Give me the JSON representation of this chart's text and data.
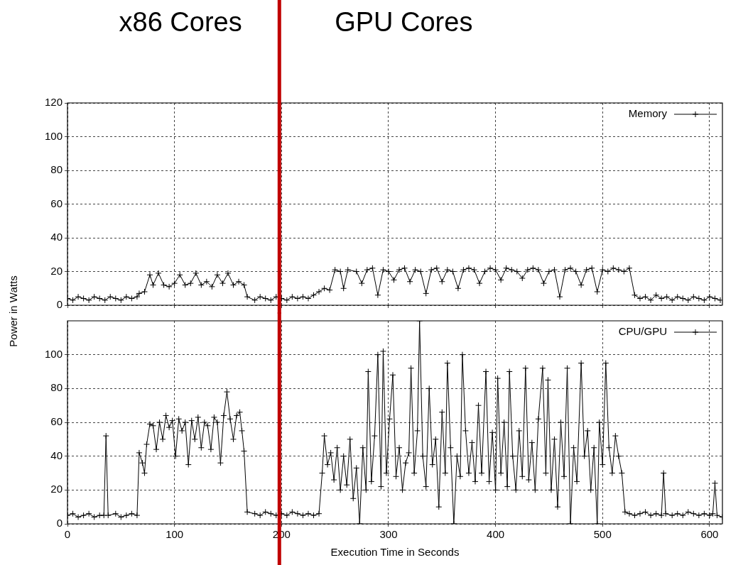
{
  "chart_data": [
    {
      "type": "line",
      "annotations": [
        "x86 Cores",
        "GPU Cores"
      ],
      "legend": "top right",
      "marker": "cross",
      "grid": true,
      "tick_labels": "y",
      "xlim": [
        0,
        612
      ],
      "xticks": [
        0,
        100,
        200,
        300,
        400,
        500,
        600
      ],
      "ylim": [
        0,
        120
      ],
      "yticks": [
        0,
        20,
        40,
        60,
        80,
        100,
        120
      ],
      "ref_lines": [
        {
          "axis": "x",
          "value": 198,
          "label": null,
          "color": "#c00000"
        }
      ],
      "series": [
        {
          "name": "Memory",
          "color": "#000000",
          "x": [
            0,
            5,
            10,
            15,
            20,
            25,
            30,
            35,
            40,
            45,
            50,
            55,
            60,
            65,
            67,
            72,
            77,
            80,
            85,
            90,
            95,
            100,
            105,
            110,
            115,
            120,
            125,
            130,
            135,
            140,
            145,
            150,
            155,
            160,
            165,
            168,
            175,
            180,
            185,
            190,
            195,
            200,
            205,
            210,
            215,
            220,
            225,
            230,
            235,
            240,
            245,
            250,
            255,
            258,
            262,
            270,
            275,
            280,
            285,
            290,
            295,
            300,
            305,
            310,
            315,
            320,
            325,
            330,
            335,
            340,
            345,
            350,
            355,
            360,
            365,
            370,
            375,
            380,
            385,
            390,
            395,
            400,
            405,
            410,
            415,
            420,
            425,
            430,
            435,
            440,
            445,
            450,
            455,
            460,
            465,
            470,
            475,
            480,
            485,
            490,
            495,
            500,
            505,
            510,
            515,
            520,
            525,
            530,
            535,
            540,
            545,
            550,
            555,
            560,
            565,
            570,
            575,
            580,
            585,
            590,
            595,
            600,
            605,
            610
          ],
          "values": [
            4,
            3,
            5,
            4,
            3,
            5,
            4,
            3,
            5,
            4,
            3,
            5,
            4,
            5,
            7,
            8,
            18,
            12,
            19,
            12,
            11,
            13,
            18,
            12,
            13,
            19,
            12,
            14,
            11,
            18,
            13,
            19,
            12,
            14,
            12,
            5,
            3,
            5,
            4,
            3,
            5,
            4,
            3,
            5,
            4,
            5,
            4,
            6,
            8,
            10,
            9,
            21,
            20,
            10,
            21,
            20,
            13,
            21,
            22,
            6,
            21,
            20,
            15,
            21,
            22,
            14,
            21,
            20,
            7,
            21,
            22,
            14,
            21,
            20,
            10,
            21,
            22,
            21,
            13,
            20,
            22,
            21,
            15,
            22,
            21,
            20,
            16,
            21,
            22,
            21,
            13,
            20,
            21,
            5,
            21,
            22,
            20,
            12,
            21,
            22,
            8,
            21,
            20,
            22,
            21,
            20,
            22,
            6,
            4,
            5,
            3,
            6,
            4,
            5,
            3,
            5,
            4,
            3,
            5,
            4,
            3,
            5,
            4,
            3
          ]
        }
      ]
    },
    {
      "type": "line",
      "xlabel": "Execution Time in Seconds",
      "ylabel": "Power in Watts",
      "legend": "top right",
      "marker": "cross",
      "grid": true,
      "xlim": [
        0,
        612
      ],
      "xticks": [
        0,
        100,
        200,
        300,
        400,
        500,
        600
      ],
      "ylim": [
        0,
        120
      ],
      "yticks": [
        0,
        20,
        40,
        60,
        80,
        100
      ],
      "ref_lines": [
        {
          "axis": "x",
          "value": 198,
          "label": null,
          "color": "#c00000"
        }
      ],
      "series": [
        {
          "name": "CPU/GPU",
          "color": "#000000",
          "x": [
            0,
            5,
            10,
            15,
            20,
            25,
            30,
            34,
            36,
            38,
            45,
            50,
            55,
            60,
            65,
            67,
            70,
            72,
            74,
            77,
            80,
            83,
            86,
            89,
            92,
            95,
            98,
            101,
            104,
            107,
            110,
            113,
            116,
            119,
            122,
            125,
            128,
            131,
            134,
            137,
            140,
            143,
            146,
            149,
            152,
            155,
            158,
            161,
            163,
            165,
            168,
            175,
            180,
            185,
            190,
            195,
            200,
            205,
            210,
            215,
            220,
            225,
            230,
            235,
            238,
            240,
            243,
            246,
            249,
            252,
            255,
            258,
            261,
            264,
            267,
            270,
            273,
            276,
            279,
            281,
            284,
            287,
            290,
            293,
            295,
            298,
            301,
            304,
            307,
            310,
            313,
            316,
            319,
            321,
            324,
            327,
            329,
            332,
            335,
            338,
            341,
            344,
            347,
            350,
            353,
            355,
            358,
            361,
            364,
            367,
            369,
            372,
            375,
            378,
            381,
            384,
            387,
            391,
            394,
            397,
            400,
            402,
            405,
            408,
            411,
            413,
            416,
            419,
            422,
            425,
            428,
            431,
            434,
            437,
            440,
            444,
            447,
            449,
            452,
            455,
            458,
            461,
            464,
            467,
            470,
            473,
            476,
            480,
            483,
            486,
            489,
            492,
            495,
            497,
            500,
            503,
            506,
            509,
            512,
            515,
            518,
            521,
            525,
            530,
            535,
            540,
            545,
            550,
            555,
            557,
            559,
            565,
            570,
            575,
            580,
            585,
            590,
            595,
            600,
            603,
            605,
            607,
            612
          ],
          "values": [
            5,
            6,
            4,
            5,
            6,
            4,
            5,
            5,
            52,
            5,
            6,
            4,
            5,
            6,
            5,
            42,
            36,
            30,
            47,
            59,
            58,
            44,
            60,
            50,
            64,
            57,
            61,
            40,
            62,
            55,
            60,
            35,
            61,
            50,
            63,
            45,
            60,
            58,
            44,
            63,
            60,
            36,
            64,
            78,
            62,
            50,
            64,
            66,
            55,
            43,
            7,
            6,
            5,
            7,
            6,
            5,
            6,
            5,
            7,
            6,
            5,
            6,
            5,
            6,
            30,
            52,
            35,
            42,
            26,
            45,
            20,
            40,
            23,
            50,
            15,
            33,
            0,
            45,
            20,
            90,
            25,
            52,
            100,
            22,
            102,
            30,
            62,
            88,
            28,
            45,
            20,
            36,
            42,
            92,
            30,
            55,
            120,
            40,
            22,
            80,
            35,
            50,
            10,
            66,
            30,
            95,
            45,
            0,
            40,
            28,
            100,
            55,
            30,
            48,
            25,
            70,
            30,
            90,
            25,
            54,
            20,
            86,
            30,
            60,
            22,
            90,
            40,
            20,
            55,
            28,
            92,
            26,
            48,
            20,
            62,
            92,
            30,
            85,
            20,
            50,
            10,
            60,
            28,
            92,
            0,
            45,
            25,
            95,
            40,
            55,
            20,
            45,
            0,
            60,
            35,
            95,
            45,
            30,
            52,
            40,
            30,
            7,
            6,
            5,
            6,
            7,
            5,
            6,
            5,
            30,
            6,
            5,
            6,
            5,
            7,
            6,
            5,
            6,
            5,
            6,
            24,
            5,
            4
          ]
        }
      ]
    }
  ]
}
